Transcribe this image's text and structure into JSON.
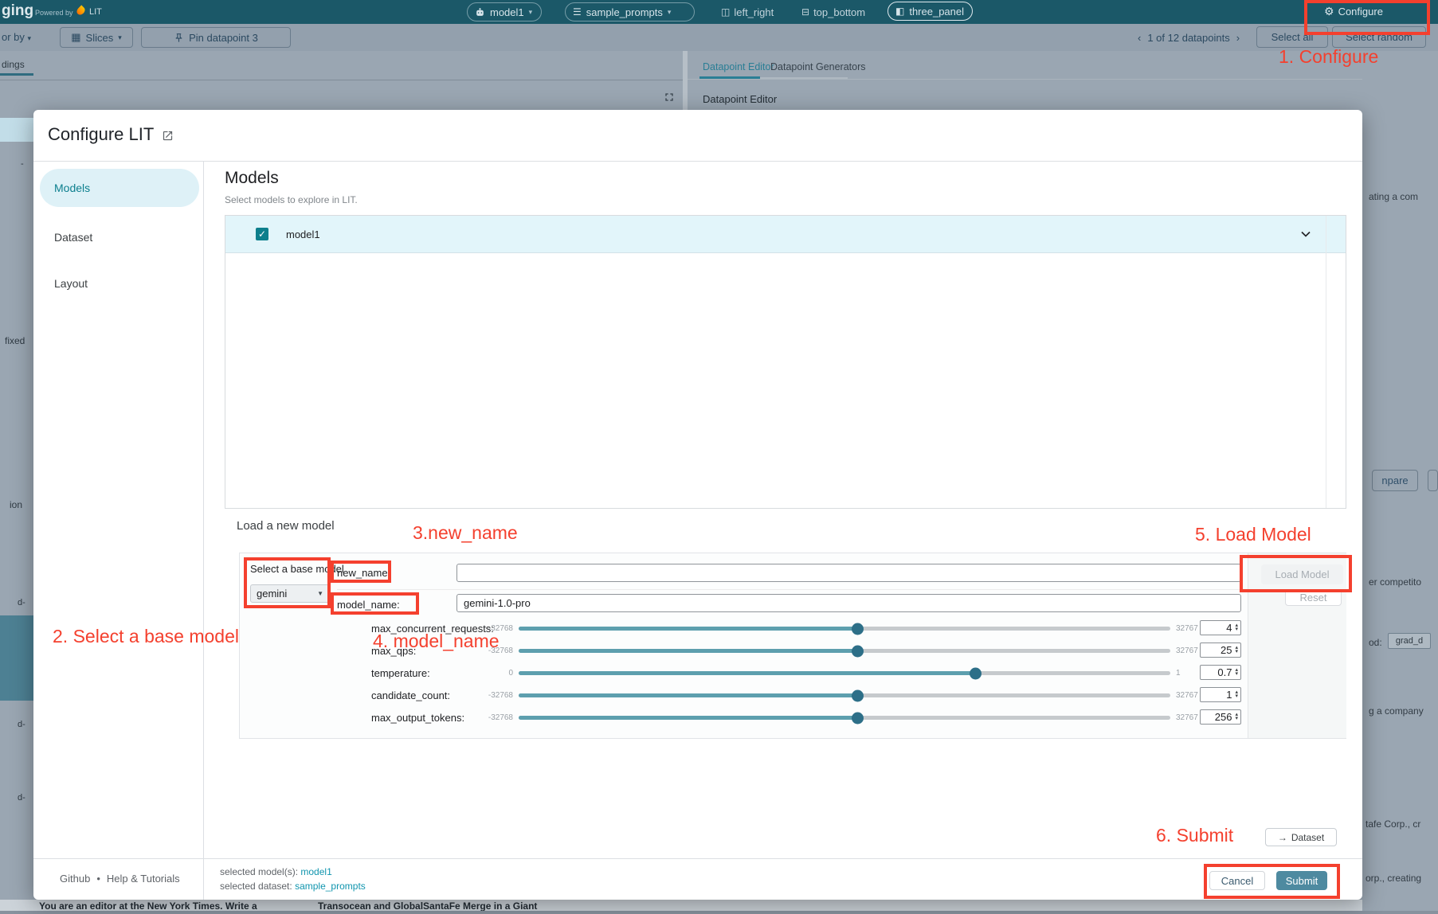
{
  "colors": {
    "annotation_red": "#f4402e",
    "accent_teal": "#0d7f8c",
    "topbar_teal": "#1b5868",
    "submit_teal": "#4e8aa0"
  },
  "icons": {
    "caret_down": "▾",
    "select_caret": "▼",
    "check": "✓",
    "spin_up": "▴",
    "spin_down": "▾",
    "prev": "‹",
    "next": "›",
    "arrow_right": "→",
    "bullet": "•",
    "grid": "▦",
    "grid_vsplit": "◫",
    "grid_hsplit": "⊟",
    "grid_panel": "◧",
    "list": "☰",
    "gear": "⚙",
    "dash": "-"
  },
  "topbar": {
    "app_name_fragment": "ging",
    "powered_by": "Powered by",
    "lit": "LIT",
    "model_selector": "model1",
    "dataset_selector": "sample_prompts",
    "layout_left_right": "left_right",
    "layout_top_bottom": "top_bottom",
    "layout_three_panel": "three_panel",
    "configure": "Configure"
  },
  "toolbar": {
    "color_by_fragment": "or by",
    "slices": "Slices",
    "pin_datapoint": "Pin datapoint 3",
    "pagination": "1 of 12 datapoints",
    "select_all": "Select all",
    "select_random": "Select random"
  },
  "background": {
    "left_tab_fragment": "dings",
    "tab_datapoint_editor": "Datapoint Editor",
    "tab_datapoint_generators": "Datapoint Generators",
    "panel_title": "Datapoint Editor",
    "left_fragments": [
      "-",
      "fixed",
      "ion",
      "d-",
      "d-",
      "d-"
    ],
    "right_fragments": {
      "f1": "ating a com",
      "compare_btn": "npare",
      "f2": "er competito",
      "f3": "od:",
      "chip": "grad_d",
      "f4": "g a company",
      "f5": "tafe Corp., cr",
      "f6": "orp., creating"
    },
    "bottom_row_left": "You are an editor at the New York Times. Write a",
    "bottom_row_right": "Transocean and GlobalSantaFe Merge in a Giant"
  },
  "dialog": {
    "title": "Configure LIT",
    "nav_models": "Models",
    "nav_dataset": "Dataset",
    "nav_layout": "Layout",
    "heading": "Models",
    "subheading": "Select models to explore in LIT.",
    "model_item": "model1",
    "load_section_label": "Load a new model",
    "base_model_label": "Select a base model",
    "base_model_value": "gemini",
    "new_name_label": "new_name:",
    "new_name_value": "",
    "model_name_label": "model_name:",
    "model_name_value": "gemini-1.0-pro",
    "sliders": [
      {
        "label": "max_concurrent_requests:",
        "min": "-32768",
        "max": "32767",
        "value": "4",
        "pct": 52
      },
      {
        "label": "max_qps:",
        "min": "-32768",
        "max": "32767",
        "value": "25",
        "pct": 52
      },
      {
        "label": "temperature:",
        "min": "0",
        "max": "1",
        "value": "0.7",
        "pct": 70
      },
      {
        "label": "candidate_count:",
        "min": "-32768",
        "max": "32767",
        "value": "1",
        "pct": 52
      },
      {
        "label": "max_output_tokens:",
        "min": "-32768",
        "max": "32767",
        "value": "256",
        "pct": 52
      }
    ],
    "load_model_btn": "Load Model",
    "reset_btn": "Reset",
    "dataset_btn": "Dataset",
    "footer_github": "Github",
    "footer_help": "Help & Tutorials",
    "selected_model_label": "selected model(s):",
    "selected_model": "model1",
    "selected_dataset_label": "selected dataset:",
    "selected_dataset": "sample_prompts",
    "cancel_btn": "Cancel",
    "submit_btn": "Submit"
  },
  "annotations": {
    "n1": "1. Configure",
    "n2": "2. Select a base model",
    "n3": "3.new_name",
    "n4": "4. model_name",
    "n5": "5. Load Model",
    "n6": "6. Submit"
  }
}
